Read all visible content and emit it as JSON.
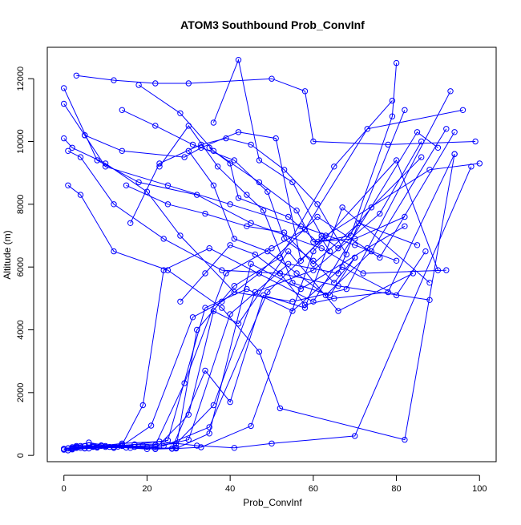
{
  "chart_data": {
    "type": "line",
    "title": "ATOM3 Southbound Prob_ConvInf",
    "xlabel": "Prob_ConvInf",
    "ylabel": "Altitude (m)",
    "xlim": [
      -4,
      104
    ],
    "ylim": [
      -200,
      13000
    ],
    "x_ticks": [
      0,
      20,
      40,
      60,
      80,
      100
    ],
    "y_ticks": [
      0,
      2000,
      4000,
      6000,
      8000,
      10000,
      12000
    ],
    "grid": false,
    "legend": "none",
    "colors": {
      "series": "#0000ff",
      "axes": "#000000",
      "background": "#ffffff"
    },
    "series": [
      {
        "x": [
          3,
          12,
          22,
          30,
          50,
          58,
          60,
          78,
          99
        ],
        "y": [
          12100,
          11950,
          11850,
          11850,
          12000,
          11600,
          10000,
          9900,
          10000
        ]
      },
      {
        "x": [
          0,
          8,
          18,
          32,
          45,
          62,
          72,
          92
        ],
        "y": [
          11700,
          9400,
          8700,
          8300,
          7400,
          6600,
          5800,
          5900
        ]
      },
      {
        "x": [
          0,
          5,
          10,
          25,
          40,
          57,
          70,
          80
        ],
        "y": [
          11200,
          10200,
          9200,
          8600,
          8000,
          7300,
          6700,
          6200
        ]
      },
      {
        "x": [
          0,
          2,
          10,
          20,
          28,
          41,
          55,
          68,
          93
        ],
        "y": [
          10100,
          9800,
          9300,
          8400,
          7000,
          5200,
          4900,
          5300,
          11600
        ]
      },
      {
        "x": [
          1,
          4,
          12,
          24,
          38,
          52,
          66,
          88
        ],
        "y": [
          9700,
          9500,
          8000,
          6900,
          5900,
          5800,
          5400,
          4950
        ]
      },
      {
        "x": [
          1,
          4,
          12,
          25,
          38,
          47,
          52,
          82,
          94
        ],
        "y": [
          8600,
          8300,
          6500,
          5900,
          4700,
          3300,
          1500,
          500,
          9600
        ]
      },
      {
        "x": [
          0,
          3,
          8,
          14,
          19,
          24,
          35,
          60,
          85,
          90
        ],
        "y": [
          200,
          240,
          280,
          340,
          1600,
          5900,
          6600,
          4900,
          10300,
          9800
        ]
      },
      {
        "x": [
          0,
          2,
          6,
          12,
          19,
          22,
          29,
          39,
          50,
          58,
          73,
          96
        ],
        "y": [
          180,
          200,
          220,
          260,
          310,
          330,
          2300,
          5800,
          6600,
          7200,
          10400,
          11000
        ]
      },
      {
        "x": [
          1,
          3,
          7,
          14,
          22,
          30,
          40,
          54,
          66,
          82
        ],
        "y": [
          220,
          250,
          280,
          300,
          270,
          500,
          4500,
          6100,
          5800,
          11000
        ]
      },
      {
        "x": [
          2,
          5,
          9,
          15,
          24,
          35,
          49,
          63,
          88,
          100
        ],
        "y": [
          190,
          230,
          300,
          250,
          300,
          900,
          5200,
          7000,
          9100,
          9300
        ]
      },
      {
        "x": [
          2,
          7,
          14,
          23,
          32,
          41,
          50,
          70,
          98
        ],
        "y": [
          230,
          270,
          380,
          440,
          310,
          240,
          380,
          620,
          9200
        ]
      },
      {
        "x": [
          0,
          4,
          10,
          20,
          26,
          33,
          45,
          60,
          80,
          90
        ],
        "y": [
          200,
          240,
          300,
          270,
          210,
          260,
          940,
          6500,
          9400,
          5900
        ]
      },
      {
        "x": [
          1,
          5,
          11,
          17,
          27,
          36,
          46,
          60,
          76,
          86
        ],
        "y": [
          160,
          220,
          270,
          350,
          370,
          1600,
          5200,
          5900,
          7700,
          10000
        ]
      },
      {
        "x": [
          0,
          2,
          8,
          17,
          25,
          34,
          44,
          55,
          67,
          80,
          87
        ],
        "y": [
          190,
          210,
          250,
          350,
          480,
          4700,
          5300,
          4600,
          6000,
          5100,
          6500
        ]
      },
      {
        "x": [
          1,
          3,
          6,
          12,
          20,
          27,
          32,
          41,
          52,
          65,
          79
        ],
        "y": [
          230,
          300,
          410,
          270,
          200,
          250,
          4000,
          5400,
          6300,
          9200,
          11300
        ]
      },
      {
        "x": [
          3,
          6,
          10,
          16,
          22,
          27,
          35,
          45,
          57,
          73,
          82
        ],
        "y": [
          270,
          320,
          270,
          240,
          200,
          220,
          700,
          6100,
          5300,
          6600,
          7300
        ]
      },
      {
        "x": [
          2,
          5,
          9,
          13,
          22,
          30,
          36,
          42,
          54,
          66,
          84
        ],
        "y": [
          260,
          300,
          320,
          280,
          210,
          1300,
          4600,
          4200,
          6500,
          4600,
          5800
        ]
      },
      {
        "x": [
          4,
          8,
          12,
          17,
          26,
          34,
          40,
          48,
          58,
          67,
          88
        ],
        "y": [
          300,
          280,
          240,
          270,
          220,
          2700,
          1700,
          5100,
          4700,
          7900,
          5500
        ]
      },
      {
        "x": [
          0,
          3,
          7,
          14,
          21,
          31,
          38,
          47,
          61,
          76,
          94
        ],
        "y": [
          210,
          240,
          290,
          310,
          950,
          4400,
          4900,
          5800,
          7600,
          6300,
          10300
        ]
      },
      {
        "x": [
          5,
          14,
          29,
          33,
          42,
          51,
          57,
          62,
          64
        ],
        "y": [
          10200,
          9700,
          9500,
          9800,
          10300,
          10100,
          6200,
          6900,
          6500
        ]
      },
      {
        "x": [
          14,
          22,
          31,
          41,
          49,
          53,
          60,
          65,
          70
        ],
        "y": [
          11000,
          10500,
          9900,
          9400,
          8400,
          6900,
          6200,
          5500,
          6300
        ]
      },
      {
        "x": [
          18,
          28,
          36,
          47,
          56,
          60,
          70,
          82
        ],
        "y": [
          11800,
          10900,
          9700,
          8700,
          7800,
          6800,
          6900,
          7600
        ]
      },
      {
        "x": [
          16,
          23,
          33,
          39,
          45,
          53,
          61,
          68
        ],
        "y": [
          7400,
          9300,
          9900,
          10100,
          9900,
          9100,
          8000,
          6400
        ]
      },
      {
        "x": [
          23,
          30,
          37,
          44,
          48,
          55,
          64,
          70
        ],
        "y": [
          9200,
          10500,
          9200,
          8300,
          7800,
          5500,
          5100,
          6300
        ]
      },
      {
        "x": [
          36,
          42,
          47,
          55,
          62,
          66,
          74,
          86
        ],
        "y": [
          10600,
          12600,
          9400,
          8700,
          7000,
          6600,
          7900,
          9500
        ]
      },
      {
        "x": [
          35,
          40,
          42,
          54,
          61,
          69,
          79,
          80
        ],
        "y": [
          9800,
          9300,
          8200,
          7600,
          6800,
          7000,
          10800,
          12500
        ]
      },
      {
        "x": [
          30,
          36,
          41,
          49,
          56,
          63,
          74,
          92
        ],
        "y": [
          9700,
          8600,
          6900,
          6500,
          5800,
          5100,
          6500,
          10400
        ]
      },
      {
        "x": [
          15,
          25,
          34,
          44,
          53,
          60,
          71,
          85
        ],
        "y": [
          8600,
          8000,
          7700,
          7300,
          7100,
          6100,
          7400,
          6700
        ]
      },
      {
        "x": [
          28,
          34,
          40,
          46,
          52,
          58,
          65,
          78,
          94
        ],
        "y": [
          4900,
          5800,
          6700,
          6400,
          5800,
          4800,
          5000,
          5200,
          9600
        ]
      }
    ]
  }
}
